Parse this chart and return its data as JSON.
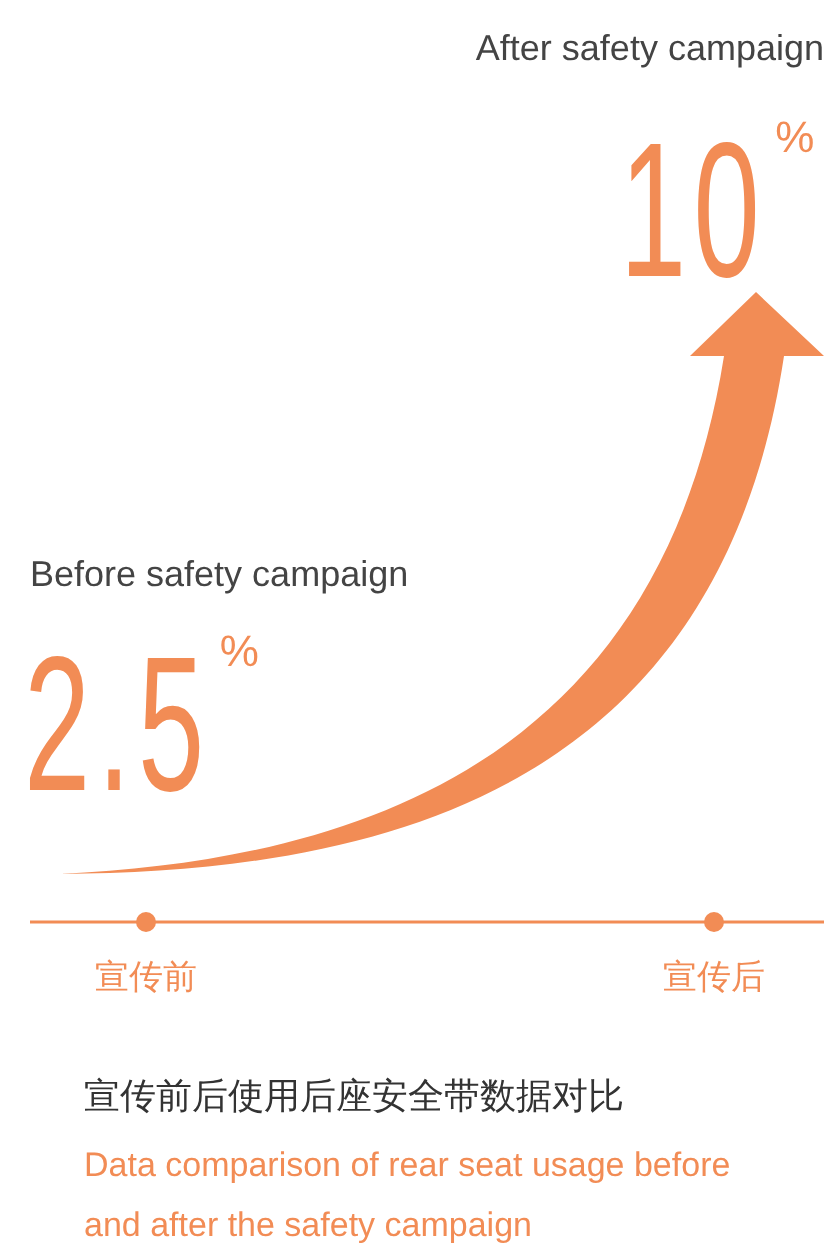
{
  "chart_data": {
    "type": "other",
    "title": "宣传前后使用后座安全带数据对比",
    "subtitle": "Data comparison of rear seat usage before and after the safety campaign",
    "categories": [
      "宣传前",
      "宣传后"
    ],
    "values": [
      2.5,
      10
    ],
    "value_labels": [
      "2.5$^{%}$",
      "10$^{%}$"
    ],
    "color": "#f28c55",
    "annotations": [
      "Before safety campaign",
      "After safety campaign"
    ]
  }
}
